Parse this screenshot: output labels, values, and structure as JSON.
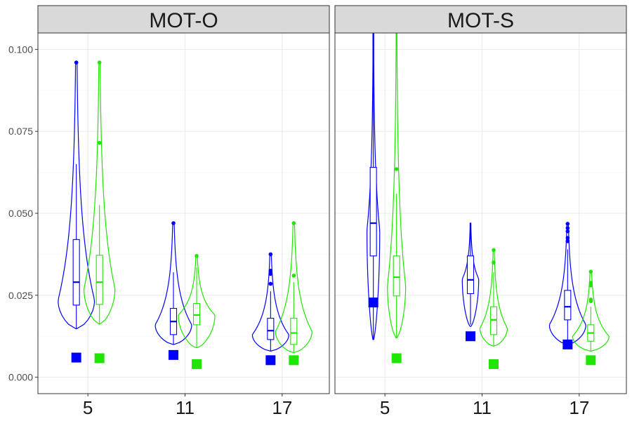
{
  "chart_data": {
    "type": "violin",
    "panels": [
      "MOT-O",
      "MOT-S"
    ],
    "categories": [
      "5",
      "11",
      "17"
    ],
    "ylim": [
      -0.005,
      0.105
    ],
    "y_ticks": [
      "0.000",
      "0.025",
      "0.050",
      "0.075",
      "0.100"
    ],
    "y_tick_values": [
      0,
      0.025,
      0.05,
      0.075,
      0.1
    ],
    "grid": true,
    "legend": "none",
    "colors": {
      "series1": "#0000ff",
      "series2": "#1ee600",
      "strip_fill": "#d9d9d9",
      "grid": "#ebebeb"
    },
    "series": [
      {
        "color": "#0000ff",
        "panels": [
          {
            "groups": [
              {
                "category": "5",
                "min": 0.0148,
                "q1": 0.022,
                "median": 0.029,
                "q3": 0.042,
                "max": 0.065,
                "outliers": [
                  0.096
                ],
                "marker": 0.006,
                "vmin": 0.0148,
                "vmax": 0.096,
                "vpeak": 0.0235,
                "vwidth": 1.0
              },
              {
                "category": "11",
                "min": 0.01,
                "q1": 0.013,
                "median": 0.017,
                "q3": 0.021,
                "max": 0.032,
                "outliers": [
                  0.047
                ],
                "marker": 0.0068,
                "vmin": 0.01,
                "vmax": 0.047,
                "vpeak": 0.016,
                "vwidth": 1.0
              },
              {
                "category": "17",
                "min": 0.008,
                "q1": 0.0115,
                "median": 0.0142,
                "q3": 0.018,
                "max": 0.0262,
                "outliers": [
                  0.0285,
                  0.0315,
                  0.0325,
                  0.0375
                ],
                "marker": 0.0052,
                "vmin": 0.008,
                "vmax": 0.0375,
                "vpeak": 0.013,
                "vwidth": 1.0
              }
            ]
          },
          {
            "groups": [
              {
                "category": "5",
                "min": 0.0115,
                "q1": 0.037,
                "median": 0.047,
                "q3": 0.064,
                "max": 0.105,
                "outliers": [],
                "marker": 0.0228,
                "vmin": 0.0115,
                "vmax": 0.105,
                "vpeak": 0.045,
                "vwidth": 0.35
              },
              {
                "category": "11",
                "min": 0.016,
                "q1": 0.0255,
                "median": 0.0297,
                "q3": 0.037,
                "max": 0.047,
                "outliers": [],
                "marker": 0.0125,
                "vmin": 0.0155,
                "vmax": 0.047,
                "vpeak": 0.03,
                "vwidth": 0.45
              },
              {
                "category": "17",
                "min": 0.01,
                "q1": 0.0175,
                "median": 0.0215,
                "q3": 0.0265,
                "max": 0.039,
                "outliers": [
                  0.0415,
                  0.0425,
                  0.0445,
                  0.0455,
                  0.0468
                ],
                "marker": 0.01,
                "vmin": 0.01,
                "vmax": 0.047,
                "vpeak": 0.016,
                "vwidth": 1.0
              }
            ]
          }
        ]
      },
      {
        "color": "#1ee600",
        "panels": [
          {
            "groups": [
              {
                "category": "5",
                "min": 0.0162,
                "q1": 0.0222,
                "median": 0.029,
                "q3": 0.0372,
                "max": 0.0525,
                "outliers": [
                  0.0715,
                  0.096
                ],
                "marker": 0.0058,
                "vmin": 0.0162,
                "vmax": 0.096,
                "vpeak": 0.027,
                "vwidth": 0.85
              },
              {
                "category": "11",
                "min": 0.009,
                "q1": 0.016,
                "median": 0.019,
                "q3": 0.0225,
                "max": 0.0335,
                "outliers": [
                  0.037
                ],
                "marker": 0.004,
                "vmin": 0.009,
                "vmax": 0.037,
                "vpeak": 0.019,
                "vwidth": 1.0
              },
              {
                "category": "17",
                "min": 0.0075,
                "q1": 0.01,
                "median": 0.0135,
                "q3": 0.018,
                "max": 0.029,
                "outliers": [
                  0.031,
                  0.047
                ],
                "marker": 0.0052,
                "vmin": 0.0075,
                "vmax": 0.047,
                "vpeak": 0.014,
                "vwidth": 1.0
              }
            ]
          },
          {
            "groups": [
              {
                "category": "5",
                "min": 0.012,
                "q1": 0.0248,
                "median": 0.0305,
                "q3": 0.037,
                "max": 0.056,
                "outliers": [
                  0.0635
                ],
                "marker": 0.0058,
                "vmin": 0.012,
                "vmax": 0.105,
                "vpeak": 0.028,
                "vwidth": 0.5
              },
              {
                "category": "11",
                "min": 0.0095,
                "q1": 0.013,
                "median": 0.0175,
                "q3": 0.0215,
                "max": 0.032,
                "outliers": [
                  0.035,
                  0.0388
                ],
                "marker": 0.004,
                "vmin": 0.0095,
                "vmax": 0.0388,
                "vpeak": 0.015,
                "vwidth": 0.75
              },
              {
                "category": "17",
                "min": 0.008,
                "q1": 0.011,
                "median": 0.0135,
                "q3": 0.016,
                "max": 0.0215,
                "outliers": [
                  0.0232,
                  0.0237,
                  0.028,
                  0.0288,
                  0.0322
                ],
                "marker": 0.0052,
                "vmin": 0.008,
                "vmax": 0.0325,
                "vpeak": 0.0125,
                "vwidth": 1.0
              }
            ]
          }
        ]
      }
    ]
  }
}
